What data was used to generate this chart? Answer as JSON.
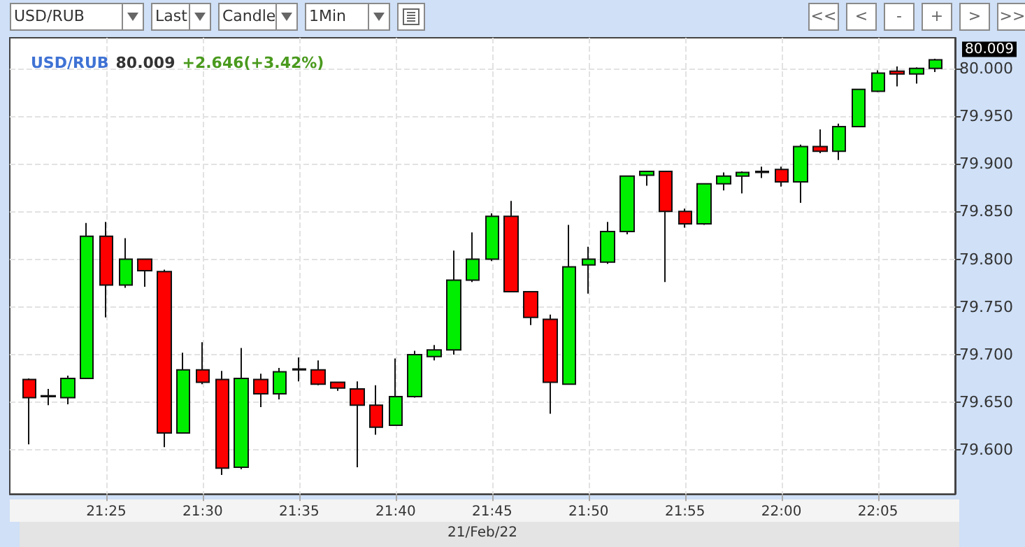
{
  "chart_data": {
    "type": "candlestick",
    "title": "USD/RUB",
    "xlabel": "21/Feb/22",
    "annotations": [
      "80.009",
      "+2.646(+3.42%)",
      "80.009",
      "USD/RUB",
      "Last",
      "Candle",
      "1Min",
      "<<",
      "<",
      "-",
      "+",
      ">",
      ">>"
    ],
    "x": [
      "--02-21T21:21",
      "--02-21T21:22",
      "--02-21T21:23",
      "--02-21T21:24",
      "--02-21T21:25",
      "--02-21T21:26",
      "--02-21T21:27",
      "--02-21T21:28",
      "--02-21T21:29",
      "--02-21T21:30",
      "--02-21T21:31",
      "--02-21T21:32",
      "--02-21T21:33",
      "--02-21T21:34",
      "--02-21T21:35",
      "--02-21T21:36",
      "--02-21T21:37",
      "--02-21T21:38",
      "--02-21T21:39",
      "--02-21T21:40",
      "--02-21T21:41",
      "--02-21T21:42",
      "--02-21T21:43",
      "--02-21T21:44",
      "--02-21T21:45",
      "--02-21T21:46",
      "--02-21T21:47",
      "--02-21T21:48",
      "--02-21T21:49",
      "--02-21T21:50",
      "--02-21T21:51",
      "--02-21T21:52",
      "--02-21T21:53",
      "--02-21T21:54",
      "--02-21T21:55",
      "--02-21T21:56",
      "--02-21T21:57",
      "--02-21T21:58",
      "--02-21T21:59",
      "--02-21T22:00",
      "--02-21T22:01",
      "--02-21T22:02",
      "--02-21T22:03",
      "--02-21T22:04",
      "--02-21T22:05",
      "--02-21T22:06",
      "--02-21T22:07",
      "--02-21T22:08"
    ],
    "ohlc": [
      [
        79.674,
        79.675,
        79.606,
        79.655
      ],
      [
        79.656,
        79.664,
        79.647,
        79.657
      ],
      [
        79.655,
        79.678,
        79.648,
        79.675
      ],
      [
        79.675,
        79.838,
        79.675,
        79.824
      ],
      [
        79.824,
        79.839,
        79.739,
        79.773
      ],
      [
        79.773,
        79.822,
        79.77,
        79.8
      ],
      [
        79.8,
        79.8,
        79.771,
        79.788
      ],
      [
        79.787,
        79.789,
        79.603,
        79.618
      ],
      [
        79.618,
        79.702,
        79.618,
        79.684
      ],
      [
        79.684,
        79.713,
        79.669,
        79.671
      ],
      [
        79.674,
        79.683,
        79.574,
        79.581
      ],
      [
        79.582,
        79.707,
        79.58,
        79.675
      ],
      [
        79.674,
        79.68,
        79.645,
        79.659
      ],
      [
        79.659,
        79.686,
        79.653,
        79.682
      ],
      [
        79.684,
        79.697,
        79.672,
        79.685
      ],
      [
        79.684,
        79.694,
        79.668,
        79.669
      ],
      [
        79.671,
        79.671,
        79.662,
        79.665
      ],
      [
        79.664,
        79.672,
        79.582,
        79.647
      ],
      [
        79.647,
        79.668,
        79.616,
        79.624
      ],
      [
        79.626,
        79.696,
        79.626,
        79.656
      ],
      [
        79.656,
        79.704,
        79.655,
        79.7
      ],
      [
        79.698,
        79.71,
        79.694,
        79.705
      ],
      [
        79.705,
        79.809,
        79.7,
        79.778
      ],
      [
        79.778,
        79.828,
        79.776,
        79.8
      ],
      [
        79.8,
        79.848,
        79.798,
        79.845
      ],
      [
        79.845,
        79.861,
        79.766,
        79.766
      ],
      [
        79.766,
        79.766,
        79.731,
        79.739
      ],
      [
        79.737,
        79.742,
        79.638,
        79.671
      ],
      [
        79.669,
        79.836,
        79.669,
        79.792
      ],
      [
        79.794,
        79.813,
        79.764,
        79.8
      ],
      [
        79.797,
        79.839,
        79.795,
        79.829
      ],
      [
        79.829,
        79.887,
        79.826,
        79.887
      ],
      [
        79.888,
        79.892,
        79.877,
        79.892
      ],
      [
        79.892,
        79.892,
        79.776,
        79.85
      ],
      [
        79.85,
        79.853,
        79.833,
        79.837
      ],
      [
        79.837,
        79.879,
        79.836,
        79.879
      ],
      [
        79.879,
        79.891,
        79.872,
        79.887
      ],
      [
        79.887,
        79.892,
        79.869,
        79.891
      ],
      [
        79.891,
        79.897,
        79.885,
        79.892
      ],
      [
        79.894,
        79.897,
        79.876,
        79.881
      ],
      [
        79.881,
        79.92,
        79.859,
        79.918
      ],
      [
        79.918,
        79.936,
        79.911,
        79.913
      ],
      [
        79.913,
        79.942,
        79.904,
        79.939
      ],
      [
        79.939,
        79.978,
        79.939,
        79.978
      ],
      [
        79.976,
        79.998,
        79.975,
        79.995
      ],
      [
        79.997,
        80.002,
        79.981,
        79.994
      ],
      [
        79.994,
        80.001,
        79.984,
        80.0
      ],
      [
        80.0,
        80.01,
        79.996,
        80.009
      ]
    ],
    "colors": [
      "#ff0000",
      "#222222",
      "#00ee00",
      "#00ee00",
      "#ff0000",
      "#00ee00",
      "#ff0000",
      "#ff0000",
      "#00ee00",
      "#ff0000",
      "#ff0000",
      "#00ee00",
      "#ff0000",
      "#00ee00",
      "#222222",
      "#ff0000",
      "#ff0000",
      "#ff0000",
      "#ff0000",
      "#00ee00",
      "#00ee00",
      "#00ee00",
      "#00ee00",
      "#00ee00",
      "#00ee00",
      "#ff0000",
      "#ff0000",
      "#ff0000",
      "#00ee00",
      "#00ee00",
      "#00ee00",
      "#00ee00",
      "#00ee00",
      "#ff0000",
      "#ff0000",
      "#00ee00",
      "#00ee00",
      "#00ee00",
      "#222222",
      "#ff0000",
      "#00ee00",
      "#ff0000",
      "#00ee00",
      "#00ee00",
      "#00ee00",
      "#ff0000",
      "#00ee00",
      "#00ee00"
    ],
    "xlim": [
      "--02-21T21:20",
      "--02-21T22:09"
    ],
    "xticks": [
      {
        "value": "--02-21T21:25",
        "label": "21:25"
      },
      {
        "value": "--02-21T21:30",
        "label": "21:30"
      },
      {
        "value": "--02-21T21:35",
        "label": "21:35"
      },
      {
        "value": "--02-21T21:40",
        "label": "21:40"
      },
      {
        "value": "--02-21T21:45",
        "label": "21:45"
      },
      {
        "value": "--02-21T21:50",
        "label": "21:50"
      },
      {
        "value": "--02-21T21:55",
        "label": "21:55"
      },
      {
        "value": "--02-21T22:00",
        "label": "22:00"
      },
      {
        "value": "--02-21T22:05",
        "label": "22:05"
      }
    ],
    "ylim": [
      79.554,
      80.032
    ],
    "yticks": [
      {
        "value": 79.6,
        "label": "79.600"
      },
      {
        "value": 79.65,
        "label": "79.650"
      },
      {
        "value": 79.7,
        "label": "79.700"
      },
      {
        "value": 79.75,
        "label": "79.750"
      },
      {
        "value": 79.8,
        "label": "79.800"
      },
      {
        "value": 79.85,
        "label": "79.850"
      },
      {
        "value": 79.9,
        "label": "79.900"
      },
      {
        "value": 79.95,
        "label": "79.950"
      },
      {
        "value": 80,
        "label": "80.000"
      }
    ],
    "grid": true
  }
}
